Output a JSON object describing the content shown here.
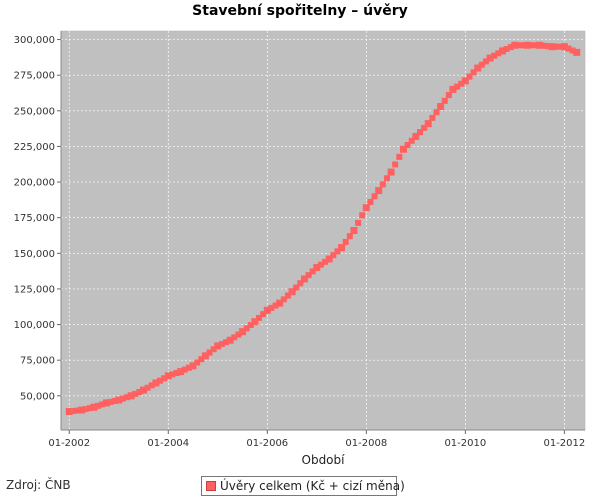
{
  "source": "Zdroj: ČNB",
  "legend": {
    "label": "Úvěry celkem (Kč + cizí měna)"
  },
  "chart_data": {
    "type": "line",
    "title": "Stavební spořitelny – úvěry",
    "xlabel": "Období",
    "ylabel": "",
    "x_ticks": [
      "01-2002",
      "01-2004",
      "01-2006",
      "01-2008",
      "01-2010",
      "01-2012"
    ],
    "y_ticks": [
      "50,000",
      "75,000",
      "100,000",
      "125,000",
      "150,000",
      "175,000",
      "200,000",
      "225,000",
      "250,000",
      "275,000",
      "300,000"
    ],
    "ylim": [
      26000,
      306000
    ],
    "xlim": [
      "2001-11",
      "2012-06"
    ],
    "grid": true,
    "plot_background": "#c0c0c0",
    "series": [
      {
        "name": "Úvěry celkem (Kč + cizí měna)",
        "color": "#ff6060",
        "x": [
          "2002-01",
          "2002-04",
          "2002-07",
          "2002-10",
          "2003-01",
          "2003-04",
          "2003-07",
          "2003-10",
          "2004-01",
          "2004-04",
          "2004-07",
          "2004-10",
          "2005-01",
          "2005-04",
          "2005-07",
          "2005-10",
          "2006-01",
          "2006-04",
          "2006-07",
          "2006-10",
          "2007-01",
          "2007-04",
          "2007-07",
          "2007-10",
          "2008-01",
          "2008-04",
          "2008-07",
          "2008-10",
          "2009-01",
          "2009-04",
          "2009-07",
          "2009-10",
          "2010-01",
          "2010-04",
          "2010-07",
          "2010-10",
          "2011-01",
          "2011-04",
          "2011-07",
          "2011-10",
          "2012-01",
          "2012-04"
        ],
        "values": [
          39000,
          40000,
          42000,
          45000,
          47000,
          50000,
          54000,
          59000,
          64000,
          67000,
          71000,
          78000,
          85000,
          89000,
          95000,
          102000,
          110000,
          115000,
          123000,
          132000,
          140000,
          146000,
          154000,
          166000,
          182000,
          194000,
          207000,
          223000,
          232000,
          241000,
          253000,
          265000,
          271000,
          280000,
          287000,
          292000,
          296000,
          296000,
          296000,
          295000,
          295000,
          291000
        ]
      }
    ]
  }
}
